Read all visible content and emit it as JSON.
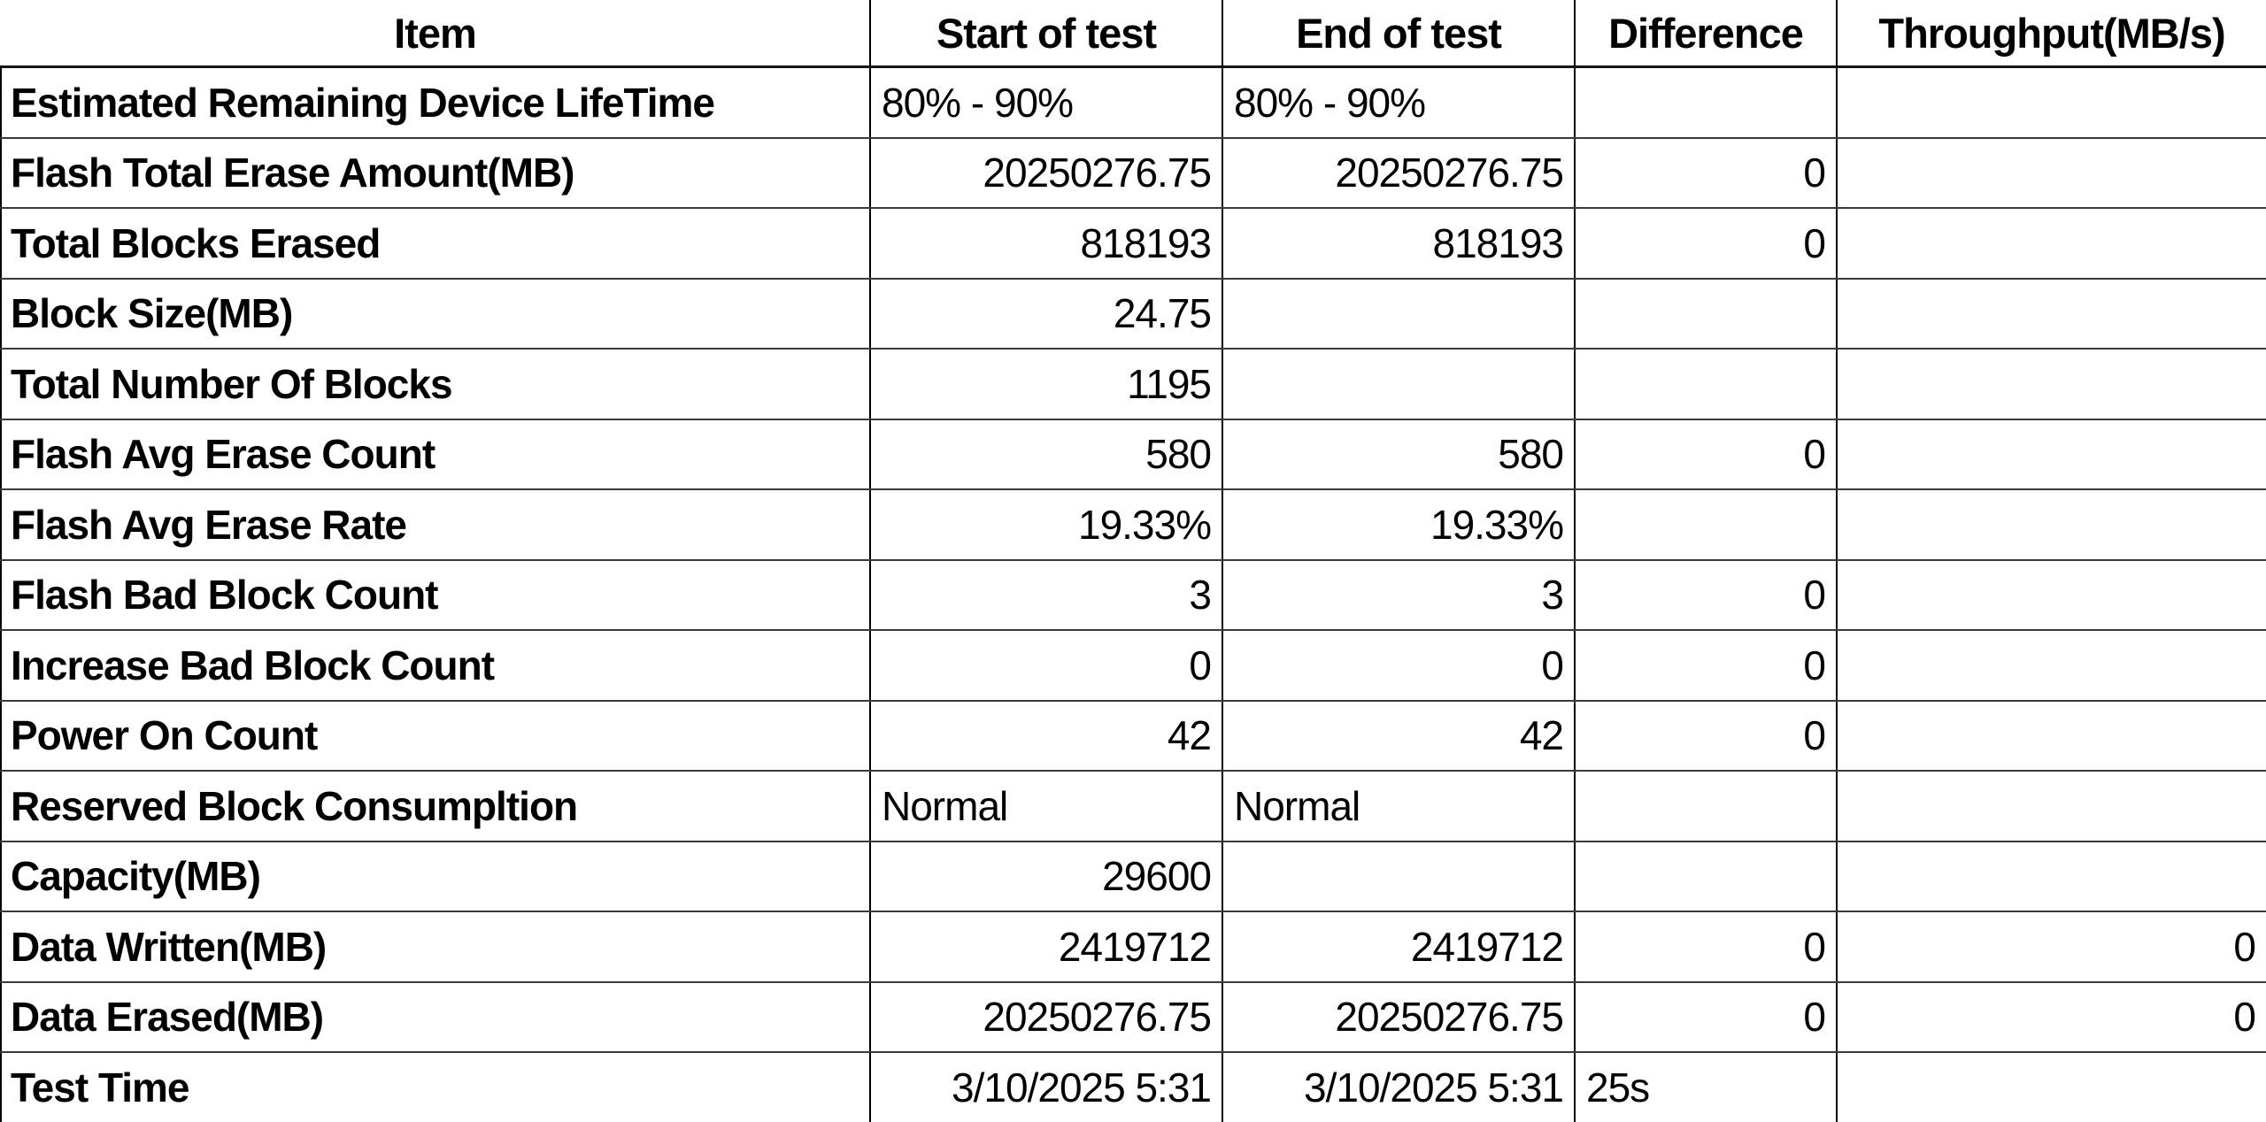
{
  "colors": {
    "background": "#ffffff",
    "text": "#000000",
    "grid_vertical": "#000000",
    "grid_horizontal": "#3a3a3a",
    "header_underline": "#151515"
  },
  "table": {
    "header": [
      "Item",
      "Start of test",
      "End of test",
      "Difference",
      "Throughput(MB/s)"
    ],
    "rows": [
      {
        "cells": [
          {
            "text": "Estimated Remaining Device LifeTime",
            "align": "left"
          },
          {
            "text": "80% - 90%",
            "align": "left"
          },
          {
            "text": "80% - 90%",
            "align": "left"
          },
          {
            "text": "",
            "align": "right"
          },
          {
            "text": "",
            "align": "right"
          }
        ]
      },
      {
        "cells": [
          {
            "text": "Flash Total Erase Amount(MB)",
            "align": "left"
          },
          {
            "text": "20250276.75",
            "align": "right"
          },
          {
            "text": "20250276.75",
            "align": "right"
          },
          {
            "text": "0",
            "align": "right"
          },
          {
            "text": "",
            "align": "right"
          }
        ]
      },
      {
        "cells": [
          {
            "text": "Total Blocks Erased",
            "align": "left"
          },
          {
            "text": "818193",
            "align": "right"
          },
          {
            "text": "818193",
            "align": "right"
          },
          {
            "text": "0",
            "align": "right"
          },
          {
            "text": "",
            "align": "right"
          }
        ]
      },
      {
        "cells": [
          {
            "text": "Block Size(MB)",
            "align": "left"
          },
          {
            "text": "24.75",
            "align": "right"
          },
          {
            "text": "",
            "align": "right"
          },
          {
            "text": "",
            "align": "right"
          },
          {
            "text": "",
            "align": "right"
          }
        ]
      },
      {
        "cells": [
          {
            "text": "Total Number Of Blocks",
            "align": "left"
          },
          {
            "text": "1195",
            "align": "right"
          },
          {
            "text": "",
            "align": "right"
          },
          {
            "text": "",
            "align": "right"
          },
          {
            "text": "",
            "align": "right"
          }
        ]
      },
      {
        "cells": [
          {
            "text": "Flash Avg Erase Count",
            "align": "left"
          },
          {
            "text": "580",
            "align": "right"
          },
          {
            "text": "580",
            "align": "right"
          },
          {
            "text": "0",
            "align": "right"
          },
          {
            "text": "",
            "align": "right"
          }
        ]
      },
      {
        "cells": [
          {
            "text": "Flash Avg Erase Rate",
            "align": "left"
          },
          {
            "text": "19.33%",
            "align": "right"
          },
          {
            "text": "19.33%",
            "align": "right"
          },
          {
            "text": "",
            "align": "right"
          },
          {
            "text": "",
            "align": "right"
          }
        ]
      },
      {
        "cells": [
          {
            "text": "Flash Bad Block Count",
            "align": "left"
          },
          {
            "text": "3",
            "align": "right"
          },
          {
            "text": "3",
            "align": "right"
          },
          {
            "text": "0",
            "align": "right"
          },
          {
            "text": "",
            "align": "right"
          }
        ]
      },
      {
        "cells": [
          {
            "text": "Increase Bad Block Count",
            "align": "left"
          },
          {
            "text": "0",
            "align": "right"
          },
          {
            "text": "0",
            "align": "right"
          },
          {
            "text": "0",
            "align": "right"
          },
          {
            "text": "",
            "align": "right"
          }
        ]
      },
      {
        "cells": [
          {
            "text": "Power On Count",
            "align": "left"
          },
          {
            "text": "42",
            "align": "right"
          },
          {
            "text": "42",
            "align": "right"
          },
          {
            "text": "0",
            "align": "right"
          },
          {
            "text": "",
            "align": "right"
          }
        ]
      },
      {
        "cells": [
          {
            "text": "Reserved Block Consumpltion",
            "align": "left"
          },
          {
            "text": "Normal",
            "align": "left"
          },
          {
            "text": "Normal",
            "align": "left"
          },
          {
            "text": "",
            "align": "right"
          },
          {
            "text": "",
            "align": "right"
          }
        ]
      },
      {
        "cells": [
          {
            "text": "Capacity(MB)",
            "align": "left"
          },
          {
            "text": "29600",
            "align": "right"
          },
          {
            "text": "",
            "align": "right"
          },
          {
            "text": "",
            "align": "right"
          },
          {
            "text": "",
            "align": "right"
          }
        ]
      },
      {
        "cells": [
          {
            "text": "Data Written(MB)",
            "align": "left"
          },
          {
            "text": "2419712",
            "align": "right"
          },
          {
            "text": "2419712",
            "align": "right"
          },
          {
            "text": "0",
            "align": "right"
          },
          {
            "text": "0",
            "align": "right"
          }
        ]
      },
      {
        "cells": [
          {
            "text": "Data Erased(MB)",
            "align": "left"
          },
          {
            "text": "20250276.75",
            "align": "right"
          },
          {
            "text": "20250276.75",
            "align": "right"
          },
          {
            "text": "0",
            "align": "right"
          },
          {
            "text": "0",
            "align": "right"
          }
        ]
      },
      {
        "cells": [
          {
            "text": "Test Time",
            "align": "left"
          },
          {
            "text": "3/10/2025 5:31",
            "align": "right"
          },
          {
            "text": "3/10/2025 5:31",
            "align": "right"
          },
          {
            "text": "25s",
            "align": "left"
          },
          {
            "text": "",
            "align": "right"
          }
        ]
      }
    ]
  }
}
